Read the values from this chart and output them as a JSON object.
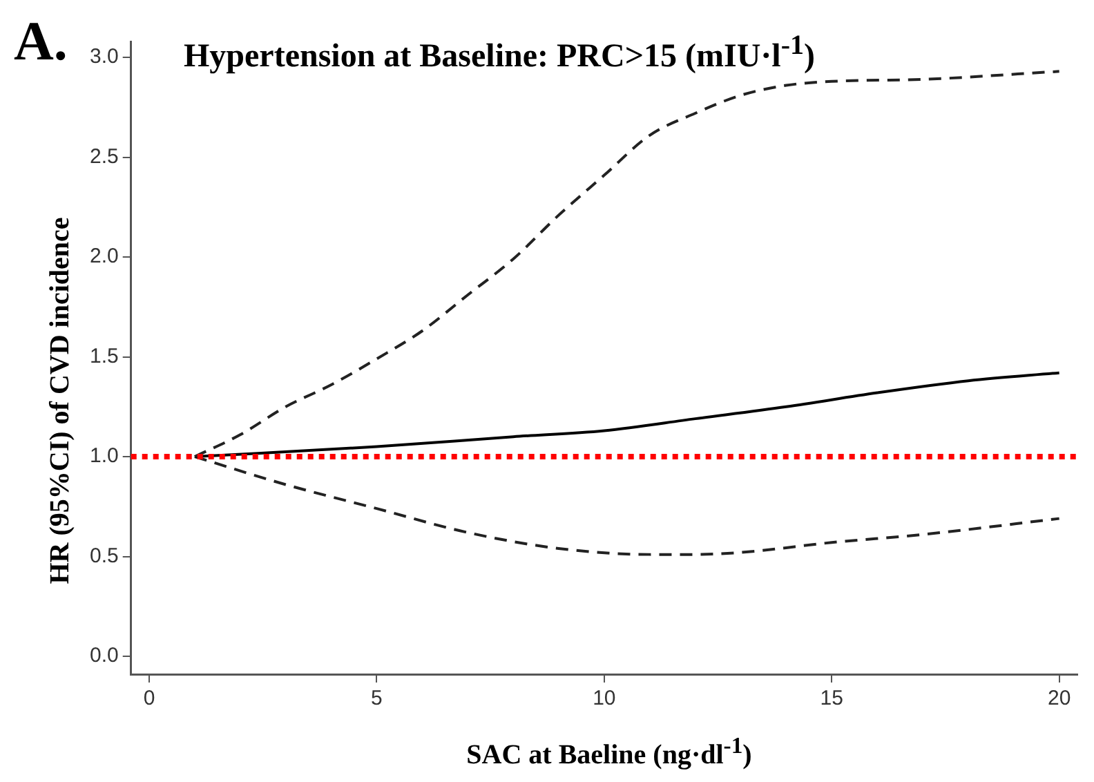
{
  "chart_data": {
    "type": "line",
    "title": "Hypertension at Baseline: PRC>15 (mIU·l$^{-1}$)",
    "xlabel": "SAC at Baeline (ng·dl$^{-1}$)",
    "ylabel": "HR (95%CI) of CVD incidence",
    "annotations": [
      "A."
    ],
    "series": [
      {
        "color": "#222222",
        "line_style": "dashed",
        "x": [
          1,
          2,
          3,
          4,
          5,
          6,
          7,
          8,
          9,
          10,
          11,
          12,
          13,
          14,
          15,
          17,
          20
        ],
        "values": [
          1.0,
          1.11,
          1.25,
          1.36,
          1.49,
          1.63,
          1.81,
          1.99,
          2.21,
          2.41,
          2.61,
          2.72,
          2.81,
          2.86,
          2.88,
          2.89,
          2.93
        ]
      },
      {
        "color": "#000000",
        "line_style": "solid",
        "x": [
          1,
          5,
          8,
          10,
          12,
          14,
          16,
          18,
          20
        ],
        "values": [
          1.0,
          1.05,
          1.1,
          1.13,
          1.19,
          1.25,
          1.32,
          1.38,
          1.42
        ]
      },
      {
        "color": "#222222",
        "line_style": "dashed",
        "x": [
          1,
          3,
          5,
          7,
          9,
          11,
          12,
          13,
          15,
          17,
          20
        ],
        "values": [
          1.0,
          0.86,
          0.74,
          0.62,
          0.54,
          0.51,
          0.51,
          0.52,
          0.57,
          0.61,
          0.69
        ]
      }
    ],
    "ref_lines": [
      {
        "axis": "y",
        "value": 1.0,
        "color": "#ff0000",
        "line_style": "dotted"
      }
    ],
    "xlim": [
      -0.4,
      20.4
    ],
    "xticks": [
      0,
      5,
      10,
      15,
      20
    ],
    "ylim": [
      -0.09,
      3.08
    ],
    "yticks": [
      {
        "value": 0,
        "label": "0.0"
      },
      {
        "value": 0.5,
        "label": "0.5"
      },
      {
        "value": 1,
        "label": "1.0"
      },
      {
        "value": 1.5,
        "label": "1.5"
      },
      {
        "value": 2,
        "label": "2.0"
      },
      {
        "value": 2.5,
        "label": "2.5"
      },
      {
        "value": 3,
        "label": "3.0"
      }
    ],
    "grid": false,
    "legend": false,
    "marker": "none"
  }
}
